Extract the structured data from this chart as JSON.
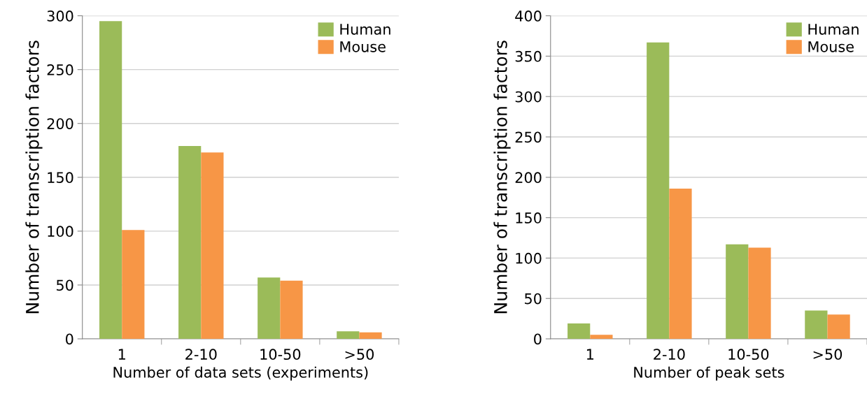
{
  "chart_data": [
    {
      "type": "bar",
      "categories": [
        "1",
        "2-10",
        "10-50",
        ">50"
      ],
      "xlabel": "Number of data sets (experiments)",
      "ylabel": "Number of transcription factors",
      "ylim": [
        0,
        300
      ],
      "yticks": [
        0,
        50,
        100,
        150,
        200,
        250,
        300
      ],
      "grid": "y",
      "legend": "top right",
      "series": [
        {
          "name": "Human",
          "color": "#9bbb59",
          "values": [
            295,
            179,
            57,
            7
          ]
        },
        {
          "name": "Mouse",
          "color": "#f79646",
          "values": [
            101,
            173,
            54,
            6
          ]
        }
      ]
    },
    {
      "type": "bar",
      "categories": [
        "1",
        "2-10",
        "10-50",
        ">50"
      ],
      "xlabel": "Number of peak sets",
      "ylabel": "Number of transcription factors",
      "ylim": [
        0,
        400
      ],
      "yticks": [
        0,
        50,
        100,
        150,
        200,
        250,
        300,
        350,
        400
      ],
      "grid": "y",
      "legend": "top right",
      "series": [
        {
          "name": "Human",
          "color": "#9bbb59",
          "values": [
            19,
            367,
            117,
            35
          ]
        },
        {
          "name": "Mouse",
          "color": "#f79646",
          "values": [
            5,
            186,
            113,
            30
          ]
        }
      ]
    }
  ]
}
